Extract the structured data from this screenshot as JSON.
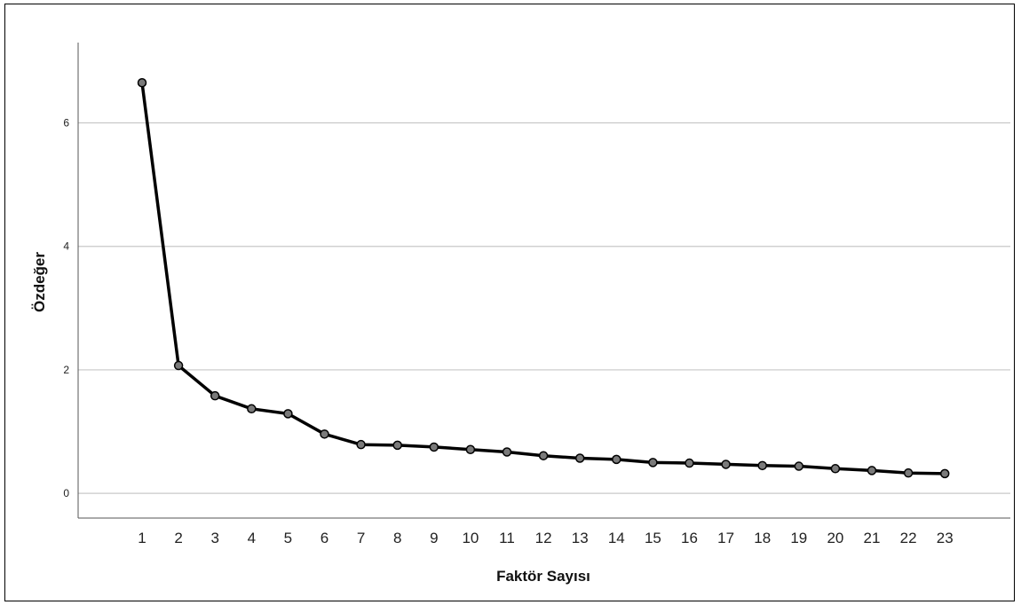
{
  "chart_data": {
    "type": "line",
    "title": "",
    "xlabel": "Faktör Sayısı",
    "ylabel": "Özdeğer",
    "categories": [
      "1",
      "2",
      "3",
      "4",
      "5",
      "6",
      "7",
      "8",
      "9",
      "10",
      "11",
      "12",
      "13",
      "14",
      "15",
      "16",
      "17",
      "18",
      "19",
      "20",
      "21",
      "22",
      "23"
    ],
    "values": [
      6.65,
      2.07,
      1.58,
      1.37,
      1.29,
      0.96,
      0.79,
      0.78,
      0.75,
      0.71,
      0.67,
      0.61,
      0.57,
      0.55,
      0.5,
      0.49,
      0.47,
      0.45,
      0.44,
      0.4,
      0.37,
      0.33,
      0.32
    ],
    "ylim": [
      -0.4,
      7.3
    ],
    "yticks": [
      "0",
      "2",
      "4",
      "6"
    ],
    "grid": true,
    "legend": "none",
    "colors": {
      "line": "#000000",
      "marker_fill": "#7a7a7a",
      "grid": "#c8c8c8",
      "axis": "#555555"
    }
  }
}
